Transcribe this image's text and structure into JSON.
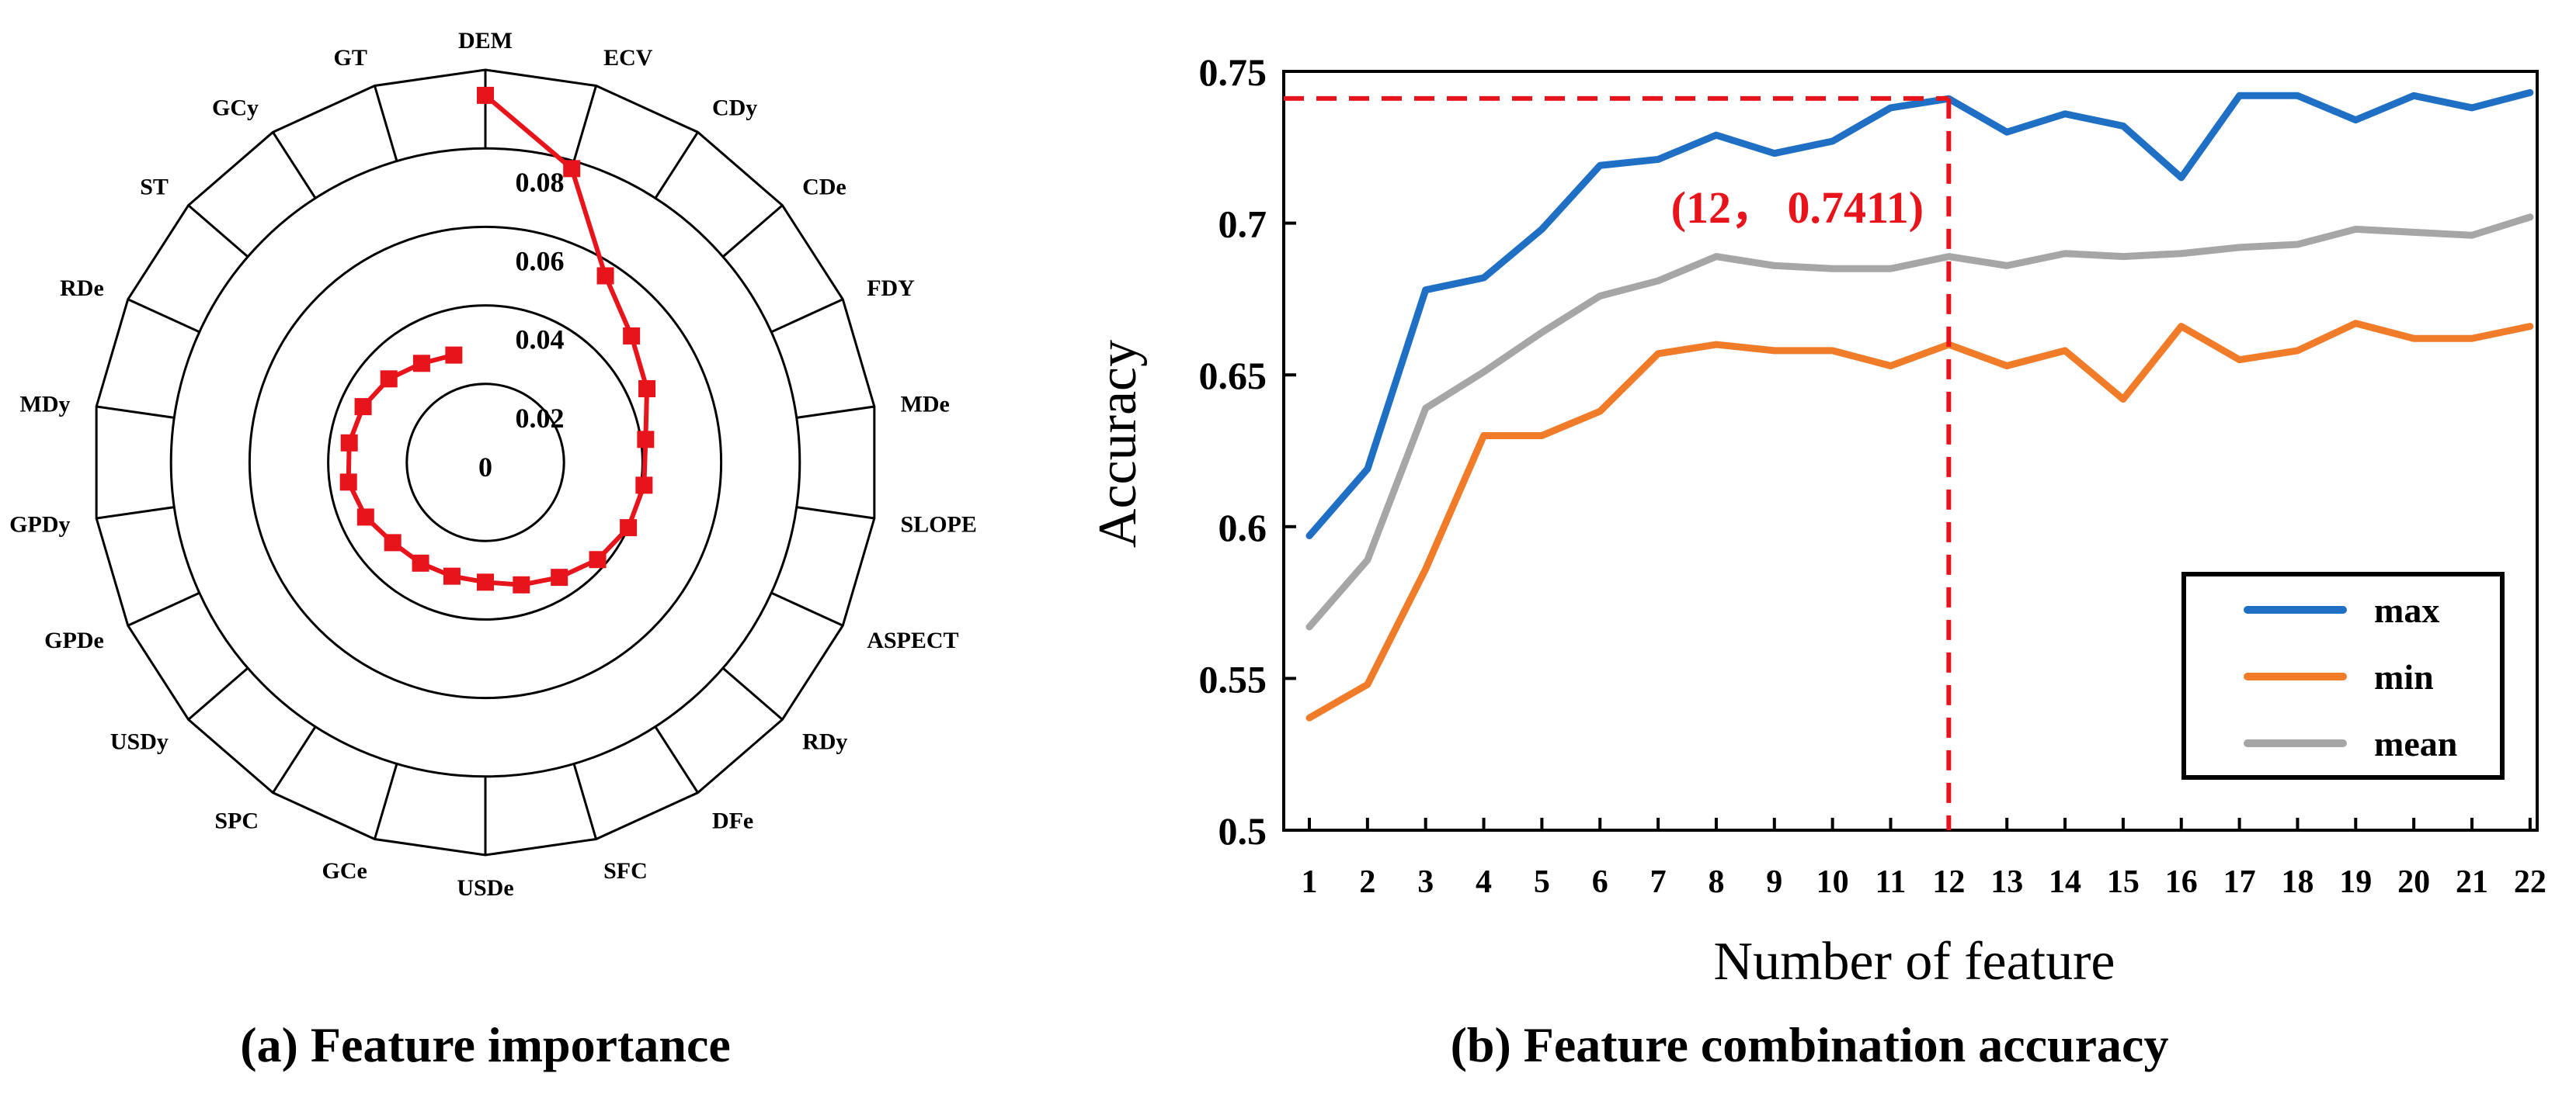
{
  "chart_data": [
    {
      "type": "radar",
      "caption": "(a) Feature importance",
      "axes": [
        "DEM",
        "ECV",
        "CDy",
        "CDe",
        "FDY",
        "MDe",
        "SLOPE",
        "ASPECT",
        "RDy",
        "DFe",
        "SFC",
        "USDe",
        "GCe",
        "SPC",
        "USDy",
        "GPDe",
        "GPDy",
        "MDy",
        "RDe",
        "ST",
        "GCy",
        "GT"
      ],
      "values": [
        0.0935,
        0.078,
        0.0565,
        0.0492,
        0.0452,
        0.0412,
        0.0408,
        0.04,
        0.0378,
        0.0348,
        0.0325,
        0.0305,
        0.0302,
        0.0305,
        0.0312,
        0.0335,
        0.0352,
        0.035,
        0.0342,
        0.0325,
        0.03,
        0.0285
      ],
      "rlim": [
        0,
        0.1
      ],
      "ring_labels": [
        "0",
        "0.02",
        "0.04",
        "0.06",
        "0.08"
      ],
      "ring_values": [
        0,
        0.02,
        0.04,
        0.06,
        0.08
      ],
      "series_color": "#e8141b"
    },
    {
      "type": "line",
      "caption": "(b) Feature combination accuracy",
      "xlabel": "Number of feature",
      "ylabel": "Accuracy",
      "x": [
        1,
        2,
        3,
        4,
        5,
        6,
        7,
        8,
        9,
        10,
        11,
        12,
        13,
        14,
        15,
        16,
        17,
        18,
        19,
        20,
        21,
        22
      ],
      "ylim": [
        0.5,
        0.75
      ],
      "yticks": [
        0.5,
        0.55,
        0.6,
        0.65,
        0.7,
        0.75
      ],
      "ytick_labels": [
        "0.5",
        "0.55",
        "0.6",
        "0.65",
        "0.7",
        "0.75"
      ],
      "series": [
        {
          "name": "max",
          "color": "#1f6fc5",
          "values": [
            0.597,
            0.619,
            0.678,
            0.682,
            0.698,
            0.719,
            0.721,
            0.729,
            0.723,
            0.727,
            0.738,
            0.741,
            0.73,
            0.736,
            0.732,
            0.715,
            0.742,
            0.742,
            0.734,
            0.742,
            0.738,
            0.743
          ]
        },
        {
          "name": "min",
          "color": "#f07c2a",
          "values": [
            0.537,
            0.548,
            0.586,
            0.63,
            0.63,
            0.638,
            0.657,
            0.66,
            0.658,
            0.658,
            0.653,
            0.66,
            0.653,
            0.658,
            0.642,
            0.666,
            0.655,
            0.658,
            0.667,
            0.662,
            0.662,
            0.666
          ]
        },
        {
          "name": "mean",
          "color": "#a6a6a6",
          "values": [
            0.567,
            0.589,
            0.639,
            0.651,
            0.664,
            0.676,
            0.681,
            0.689,
            0.686,
            0.685,
            0.685,
            0.689,
            0.686,
            0.69,
            0.689,
            0.69,
            0.692,
            0.693,
            0.698,
            0.697,
            0.696,
            0.702
          ]
        }
      ],
      "annotation": {
        "text": "(12， 0.7411)",
        "x": 12,
        "y": 0.7411,
        "color": "#e8141b"
      },
      "legend_position": "bottom-right"
    }
  ]
}
